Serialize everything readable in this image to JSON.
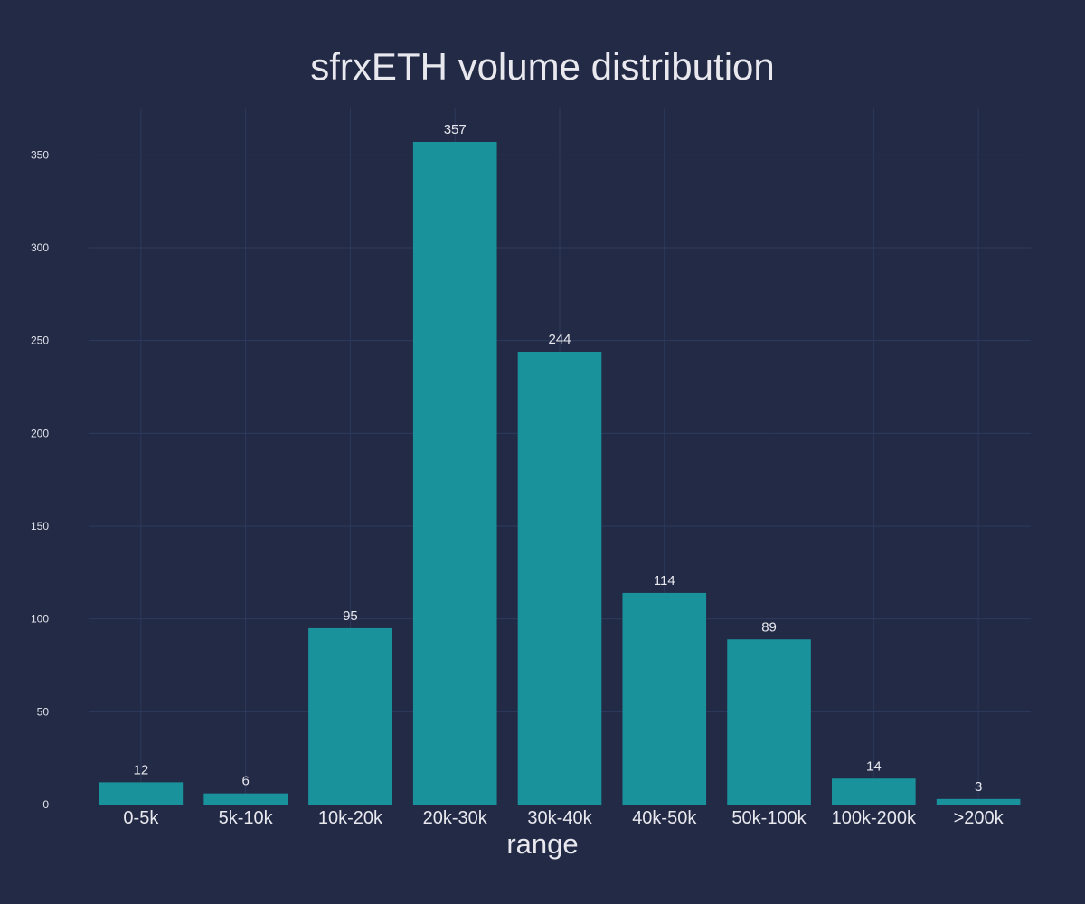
{
  "chart_data": {
    "type": "bar",
    "title": "sfrxETH volume distribution",
    "xlabel": "range",
    "ylabel": "",
    "categories": [
      "0-5k",
      "5k-10k",
      "10k-20k",
      "20k-30k",
      "30k-40k",
      "40k-50k",
      "50k-100k",
      "100k-200k",
      ">200k"
    ],
    "values": [
      12,
      6,
      95,
      357,
      244,
      114,
      89,
      14,
      3
    ],
    "ylim": [
      0,
      375
    ],
    "yticks": [
      0,
      50,
      100,
      150,
      200,
      250,
      300,
      350
    ],
    "grid": true,
    "bar_color": "#1a929c",
    "background_color": "#222a46"
  }
}
